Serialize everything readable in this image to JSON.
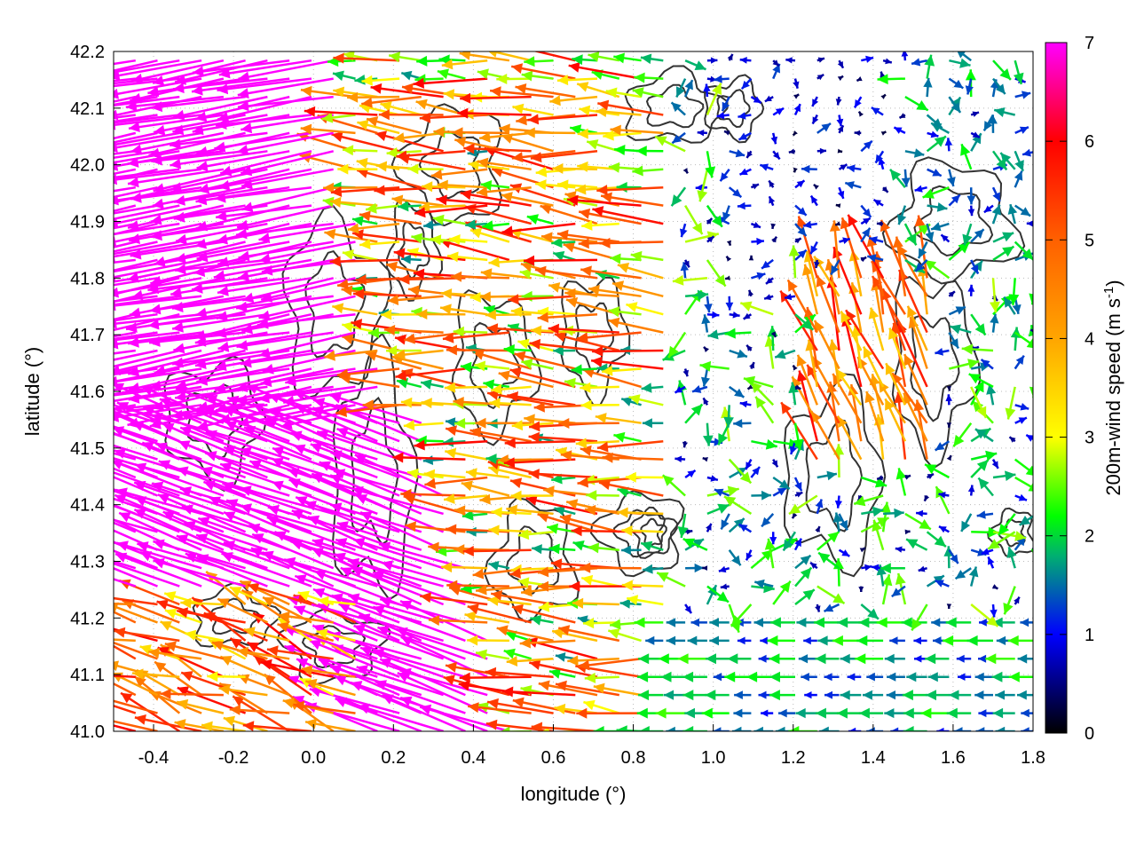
{
  "chart_data": {
    "type": "vector-field",
    "xlabel": "longitude (°)",
    "ylabel": "latitude (°)",
    "xlim": [
      -0.5,
      1.8
    ],
    "ylim": [
      41.0,
      42.2
    ],
    "x_ticks": [
      -0.4,
      -0.2,
      0.0,
      0.2,
      0.4,
      0.6,
      0.8,
      1.0,
      1.2,
      1.4,
      1.6,
      1.8
    ],
    "x_tick_labels": [
      "-0.4",
      "-0.2",
      "0.0",
      "0.2",
      "0.4",
      "0.6",
      "0.8",
      "1.0",
      "1.2",
      "1.4",
      "1.6",
      "1.8"
    ],
    "y_ticks": [
      41.0,
      41.1,
      41.2,
      41.3,
      41.4,
      41.5,
      41.6,
      41.7,
      41.8,
      41.9,
      42.0,
      42.1,
      42.2
    ],
    "y_tick_labels": [
      "41.0",
      "41.1",
      "41.2",
      "41.3",
      "41.4",
      "41.5",
      "41.6",
      "41.7",
      "41.8",
      "41.9",
      "42.0",
      "42.1",
      "42.2"
    ],
    "grid": "dotted",
    "colorbar": {
      "label": "200m-wind speed (m s-1)",
      "label_main": "200m-wind speed (m s",
      "label_sup": "-1",
      "label_end": ")",
      "range": [
        0,
        7
      ],
      "ticks": [
        0,
        1,
        2,
        3,
        4,
        5,
        6,
        7
      ],
      "tick_labels": [
        "0",
        "1",
        "2",
        "3",
        "4",
        "5",
        "6",
        "7"
      ],
      "stops": [
        {
          "value": 0,
          "color": "#000000"
        },
        {
          "value": 1,
          "color": "#0000ff"
        },
        {
          "value": 1.8,
          "color": "#00b070"
        },
        {
          "value": 2.2,
          "color": "#00ff00"
        },
        {
          "value": 3,
          "color": "#ffff00"
        },
        {
          "value": 4,
          "color": "#ffa500"
        },
        {
          "value": 5,
          "color": "#ff6000"
        },
        {
          "value": 6,
          "color": "#ff0000"
        },
        {
          "value": 7,
          "color": "#ff00ff"
        }
      ]
    },
    "wind_regions": [
      {
        "region": "west, lat 41.3-42.2",
        "direction_deg": 190,
        "speed_ms": 7.5
      },
      {
        "region": "southwest, lat 41.0-41.3",
        "direction_deg": 160,
        "speed_ms": 7.0
      },
      {
        "region": "central, lon 0.2-0.8",
        "direction_deg": 175,
        "speed_ms": 4.0
      },
      {
        "region": "east, lon 1.3-1.5, lat 41.5-41.8",
        "direction_deg": 110,
        "speed_ms": 5.0
      },
      {
        "region": "southeast, lat 41.0-41.2",
        "direction_deg": 180,
        "speed_ms": 2.0
      },
      {
        "region": "northeast, lon 1.0-1.8, lat 41.8-42.2",
        "direction_deg": 0,
        "speed_ms": 0.8
      }
    ],
    "series": [
      {
        "type": "contour",
        "color": "#333333",
        "description_levels": "terrain contours"
      }
    ]
  }
}
